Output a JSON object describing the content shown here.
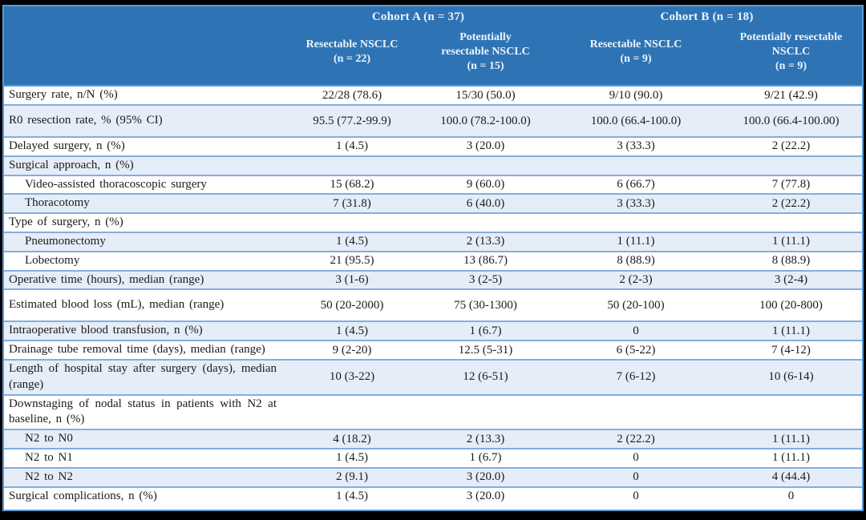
{
  "header": {
    "cohorts": [
      {
        "label": "Cohort A (n = 37)"
      },
      {
        "label": "Cohort B (n = 18)"
      }
    ],
    "columns": [
      {
        "id": "cohort-a-resectable",
        "lines": [
          "Resectable NSCLC",
          "(n = 22)"
        ]
      },
      {
        "id": "cohort-a-potentially-resectable",
        "lines": [
          "Potentially",
          "resectable NSCLC",
          "(n = 15)"
        ]
      },
      {
        "id": "cohort-b-resectable",
        "lines": [
          "Resectable NSCLC",
          "(n = 9)"
        ]
      },
      {
        "id": "cohort-b-potentially-resectable",
        "lines": [
          "Potentially resectable",
          "NSCLC",
          "(n = 9)"
        ]
      }
    ]
  },
  "rows": [
    {
      "label": "Surgery rate, n/N (%)",
      "indent": false,
      "shade": false,
      "tall": false,
      "values": [
        "22/28 (78.6)",
        "15/30 (50.0)",
        "9/10 (90.0)",
        "9/21 (42.9)"
      ]
    },
    {
      "label": "R0 resection rate, % (95% CI)",
      "indent": false,
      "shade": true,
      "tall": true,
      "values": [
        "95.5 (77.2-99.9)",
        "100.0 (78.2-100.0)",
        "100.0 (66.4-100.0)",
        "100.0 (66.4-100.00)"
      ]
    },
    {
      "label": "Delayed surgery, n (%)",
      "indent": false,
      "shade": false,
      "tall": false,
      "values": [
        "1 (4.5)",
        "3 (20.0)",
        "3 (33.3)",
        "2 (22.2)"
      ]
    },
    {
      "label": "Surgical approach, n (%)",
      "indent": false,
      "shade": true,
      "tall": false,
      "values": [
        "",
        "",
        "",
        ""
      ]
    },
    {
      "label": "Video-assisted thoracoscopic surgery",
      "indent": true,
      "shade": false,
      "tall": false,
      "values": [
        "15 (68.2)",
        "9 (60.0)",
        "6 (66.7)",
        "7 (77.8)"
      ]
    },
    {
      "label": "Thoracotomy",
      "indent": true,
      "shade": true,
      "tall": false,
      "values": [
        "7 (31.8)",
        "6 (40.0)",
        "3 (33.3)",
        "2 (22.2)"
      ]
    },
    {
      "label": "Type of surgery, n (%)",
      "indent": false,
      "shade": false,
      "tall": false,
      "values": [
        "",
        "",
        "",
        ""
      ]
    },
    {
      "label": "Pneumonectomy",
      "indent": true,
      "shade": true,
      "tall": false,
      "values": [
        "1 (4.5)",
        "2 (13.3)",
        "1 (11.1)",
        "1 (11.1)"
      ]
    },
    {
      "label": "Lobectomy",
      "indent": true,
      "shade": false,
      "tall": false,
      "values": [
        "21 (95.5)",
        "13 (86.7)",
        "8 (88.9)",
        "8 (88.9)"
      ]
    },
    {
      "label": "Operative time (hours), median (range)",
      "indent": false,
      "shade": true,
      "tall": false,
      "values": [
        "3 (1-6)",
        "3 (2-5)",
        "2 (2-3)",
        "3 (2-4)"
      ]
    },
    {
      "label": "Estimated blood loss (mL), median (range)",
      "indent": false,
      "shade": false,
      "tall": true,
      "values": [
        "50 (20-2000)",
        "75 (30-1300)",
        "50 (20-100)",
        "100 (20-800)"
      ]
    },
    {
      "label": "Intraoperative blood transfusion, n (%)",
      "indent": false,
      "shade": true,
      "tall": false,
      "values": [
        "1 (4.5)",
        "1 (6.7)",
        "0",
        "1 (11.1)"
      ]
    },
    {
      "label": "Drainage tube removal time (days), median (range)",
      "indent": false,
      "shade": false,
      "tall": false,
      "values": [
        "9 (2-20)",
        "12.5 (5-31)",
        "6 (5-22)",
        "7 (4-12)"
      ]
    },
    {
      "label": "Length of hospital stay after surgery (days), median (range)",
      "indent": false,
      "shade": true,
      "tall": false,
      "values": [
        "10 (3-22)",
        "12 (6-51)",
        "7 (6-12)",
        "10 (6-14)"
      ]
    },
    {
      "label": "Downstaging of nodal status in patients with N2 at baseline, n (%)",
      "indent": false,
      "shade": false,
      "tall": false,
      "values": [
        "",
        "",
        "",
        ""
      ]
    },
    {
      "label": "N2 to N0",
      "indent": true,
      "shade": true,
      "tall": false,
      "values": [
        "4 (18.2)",
        "2 (13.3)",
        "2 (22.2)",
        "1 (11.1)"
      ]
    },
    {
      "label": "N2 to N1",
      "indent": true,
      "shade": false,
      "tall": false,
      "values": [
        "1 (4.5)",
        "1 (6.7)",
        "0",
        "1 (11.1)"
      ]
    },
    {
      "label": "N2 to N2",
      "indent": true,
      "shade": true,
      "tall": false,
      "values": [
        "2 (9.1)",
        "3 (20.0)",
        "0",
        "4 (44.4)"
      ]
    },
    {
      "label": "Surgical complications, n (%)",
      "indent": false,
      "shade": false,
      "tall": false,
      "values": [
        "1 (4.5)",
        "3 (20.0)",
        "0",
        "0"
      ]
    }
  ],
  "colors": {
    "header_bg": "#2E74B5",
    "header_text": "#EDF3FA",
    "stripe_bg": "#E5EDF8",
    "row_border": "#84AEDD",
    "outer_border": "#5B9BD5",
    "body_text": "#1B1B1B",
    "frame": "#000000"
  }
}
